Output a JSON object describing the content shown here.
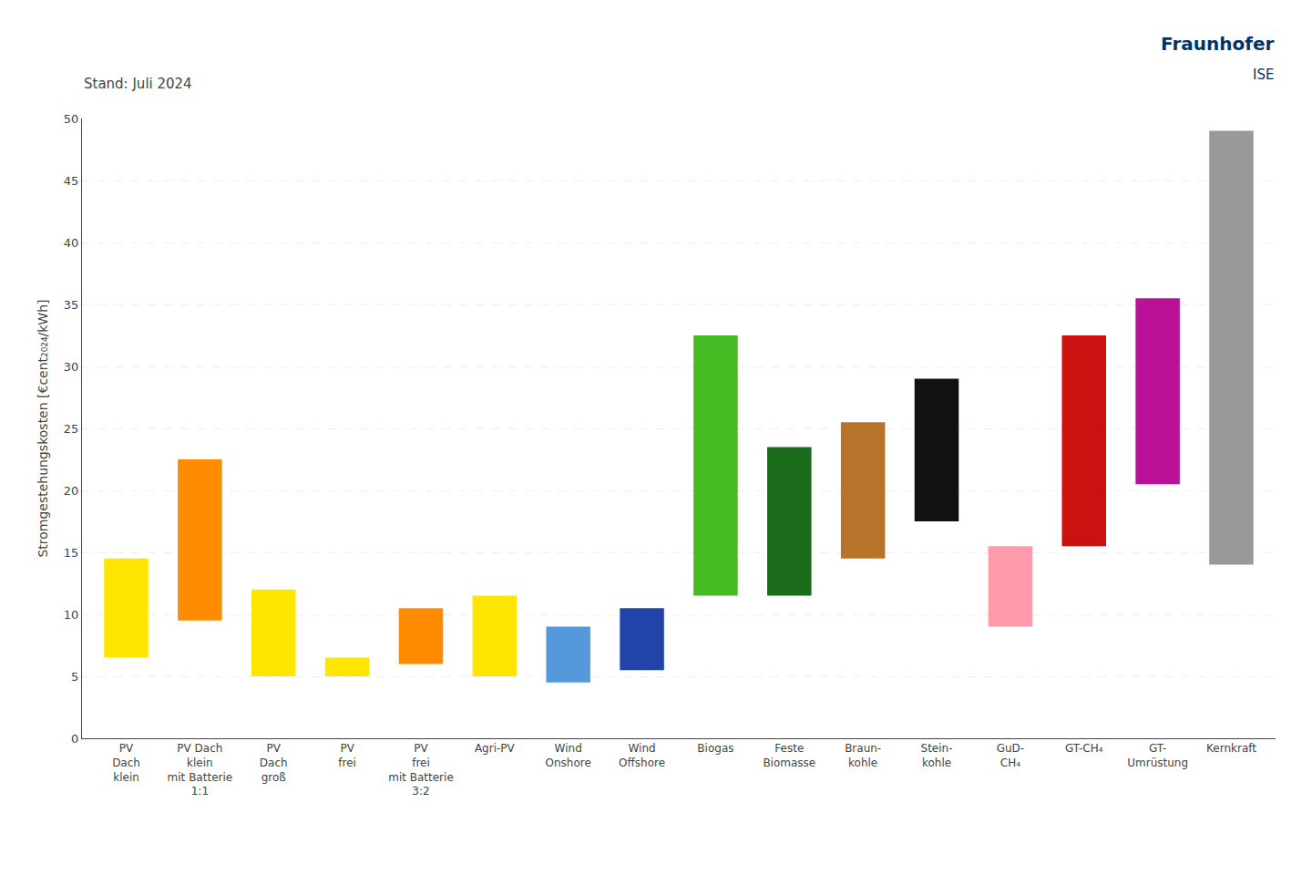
{
  "chart_data": {
    "type": "bar",
    "subtitle": "Stand: Juli 2024",
    "annotations": [
      "Fraunhofer",
      "ISE"
    ],
    "categories": [
      "PV\nDach\nklein",
      "PV Dach\nklein\nmit Batterie\n1:1",
      "PV\nDach\ngroß",
      "PV\nfrei",
      "PV\nfrei\nmit Batterie\n3:2",
      "Agri-PV",
      "Wind\nOnshore",
      "Wind\nOffshore",
      "Biogas",
      "Feste\nBiomasse",
      "Braun-\nkohle",
      "Stein-\nkohle",
      "GuD-\nCH₄",
      "GT-CH₄",
      "GT-\nUmrüstung",
      "Kernkraft"
    ],
    "base": [
      6.5,
      9.5,
      5.0,
      5.0,
      6.0,
      5.0,
      4.5,
      5.5,
      11.5,
      11.5,
      14.5,
      17.5,
      9.0,
      15.5,
      20.5,
      14.0
    ],
    "values": [
      8,
      13,
      7,
      1.5,
      4.5,
      6.5,
      4.5,
      5,
      21,
      12,
      11,
      11.5,
      6.5,
      17,
      15,
      35
    ],
    "colors": [
      "#FFE600",
      "#FF8C00",
      "#FFE600",
      "#FFE600",
      "#FF8C00",
      "#FFE600",
      "#5599DD",
      "#2244AA",
      "#44BB22",
      "#1A6B1A",
      "#B8732A",
      "#111111",
      "#FF9AAA",
      "#CC1111",
      "#BB1199",
      "#999999"
    ],
    "y_label": "Stromgestehungskosten [€cent₂₀₂₄/kWh]",
    "ylim": [
      0,
      50
    ],
    "yticks": [
      0,
      5,
      10,
      15,
      20,
      25,
      30,
      35,
      40,
      45,
      50
    ],
    "grid": true
  }
}
